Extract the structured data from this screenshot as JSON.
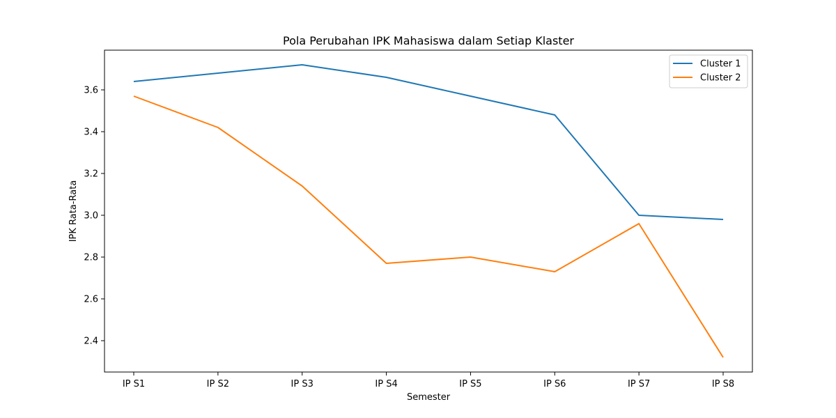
{
  "chart_data": {
    "type": "line",
    "title": "Pola Perubahan IPK Mahasiswa dalam Setiap Klaster",
    "xlabel": "Semester",
    "ylabel": "IPK Rata-Rata",
    "categories": [
      "IP S1",
      "IP S2",
      "IP S3",
      "IP S4",
      "IP S5",
      "IP S6",
      "IP S7",
      "IP S8"
    ],
    "yticks": [
      "2.4",
      "2.6",
      "2.8",
      "3.0",
      "3.2",
      "3.4",
      "3.6"
    ],
    "ylim": [
      2.25,
      3.79
    ],
    "grid": false,
    "legend_position": "top-right",
    "series": [
      {
        "name": "Cluster 1",
        "color": "#1f77b4",
        "values": [
          3.64,
          3.68,
          3.72,
          3.66,
          3.57,
          3.48,
          3.0,
          2.98
        ]
      },
      {
        "name": "Cluster 2",
        "color": "#ff7f0e",
        "values": [
          3.57,
          3.42,
          3.14,
          2.77,
          2.8,
          2.73,
          2.96,
          2.32
        ]
      }
    ]
  }
}
